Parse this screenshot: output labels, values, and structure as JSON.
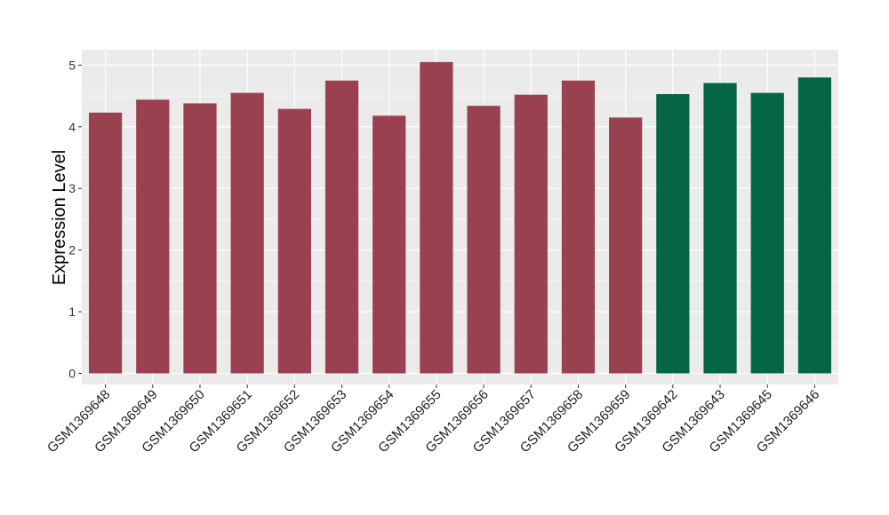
{
  "chart_data": {
    "type": "bar",
    "title": "",
    "xlabel": "",
    "ylabel": "Expression Level",
    "ylim": [
      -0.18,
      5.25
    ],
    "yticks": [
      0,
      1,
      2,
      3,
      4,
      5
    ],
    "grid": true,
    "categories": [
      "GSM1369648",
      "GSM1369649",
      "GSM1369650",
      "GSM1369651",
      "GSM1369652",
      "GSM1369653",
      "GSM1369654",
      "GSM1369655",
      "GSM1369656",
      "GSM1369657",
      "GSM1369658",
      "GSM1369659",
      "GSM1369642",
      "GSM1369643",
      "GSM1369645",
      "GSM1369646"
    ],
    "values": [
      4.23,
      4.44,
      4.38,
      4.55,
      4.29,
      4.75,
      4.18,
      5.05,
      4.34,
      4.52,
      4.75,
      4.15,
      4.53,
      4.71,
      4.55,
      4.8
    ],
    "bar_colors": [
      "#9a4150",
      "#9a4150",
      "#9a4150",
      "#9a4150",
      "#9a4150",
      "#9a4150",
      "#9a4150",
      "#9a4150",
      "#9a4150",
      "#9a4150",
      "#9a4150",
      "#9a4150",
      "#046645",
      "#046645",
      "#046645",
      "#046645"
    ],
    "panel_background": "#ebebeb",
    "grid_color": "#ffffff"
  }
}
